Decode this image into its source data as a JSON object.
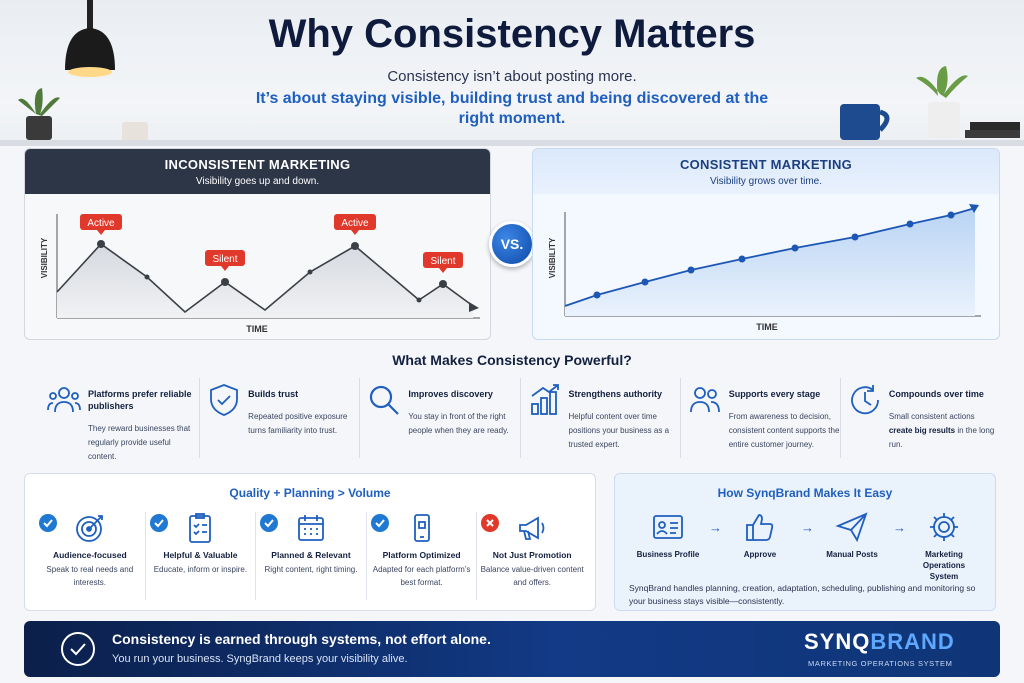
{
  "hero": {
    "title": "Why Consistency Matters",
    "subtitle": "Consistency isn’t about posting more.",
    "tagline": "It’s about staying visible, building trust and being discovered at the right moment."
  },
  "left_panel": {
    "title": "INCONSISTENT MARKETING",
    "subtitle": "Visibility goes up and down.",
    "y_axis": "VISIBILITY",
    "x_axis": "TIME",
    "labels": [
      "Active",
      "Silent",
      "Active",
      "Silent"
    ]
  },
  "right_panel": {
    "title": "CONSISTENT MARKETING",
    "subtitle": "Visibility grows over time.",
    "y_axis": "VISIBILITY",
    "x_axis": "TIME"
  },
  "vs_label": "VS.",
  "benefits_title": "What Makes Consistency Powerful?",
  "benefits": [
    {
      "icon": "users-icon",
      "title": "Platforms prefer reliable publishers",
      "desc": "They reward businesses that regularly provide useful content."
    },
    {
      "icon": "shield-check-icon",
      "title": "Builds trust",
      "desc": "Repeated positive exposure turns familiarity into trust."
    },
    {
      "icon": "search-icon",
      "title": "Improves discovery",
      "desc": "You stay in front of the right people when they are ready."
    },
    {
      "icon": "bar-chart-icon",
      "title": "Strengthens authority",
      "desc": "Helpful content over time positions your business as a trusted expert."
    },
    {
      "icon": "people-icon",
      "title": "Supports every stage",
      "desc": "From awareness to decision, consistent content supports the entire customer journey."
    },
    {
      "icon": "clock-icon",
      "title": "Compounds over time",
      "desc_pre": "Small consistent actions",
      "desc_bold": "create big results",
      "desc_post": "in the long run."
    }
  ],
  "quality": {
    "title": "Quality + Planning > Volume",
    "items": [
      {
        "name": "Audience-focused",
        "desc": "Speak to real needs and interests.",
        "status": "check"
      },
      {
        "name": "Helpful & Valuable",
        "desc": "Educate, inform or inspire.",
        "status": "check"
      },
      {
        "name": "Planned & Relevant",
        "desc": "Right content, right timing.",
        "status": "check"
      },
      {
        "name": "Platform Optimized",
        "desc": "Adapted for each platform’s best format.",
        "status": "check"
      },
      {
        "name": "Not Just Promotion",
        "desc": "Balance value-driven content and offers.",
        "status": "cross"
      }
    ]
  },
  "synqbrand": {
    "title": "How SynqBrand Makes It Easy",
    "steps": [
      "Business Profile",
      "Approve",
      "Manual Posts",
      "Marketing Operations System"
    ],
    "desc": "SynqBrand handles planning, creation, adaptation, scheduling, publishing and monitoring so your business stays visible—consistently."
  },
  "banner": {
    "headline": "Consistency is earned through systems, not effort alone.",
    "sub": "You run your business. SyngBrand keeps your visibility alive.",
    "logo_a": "SYNQ",
    "logo_b": "BRAND",
    "logo_tag": "MARKETING OPERATIONS SYSTEM"
  },
  "colors": {
    "accent": "#1f5fbf",
    "dark": "#0f1b3d",
    "alert": "#e0392b",
    "check": "#1f78d1"
  }
}
